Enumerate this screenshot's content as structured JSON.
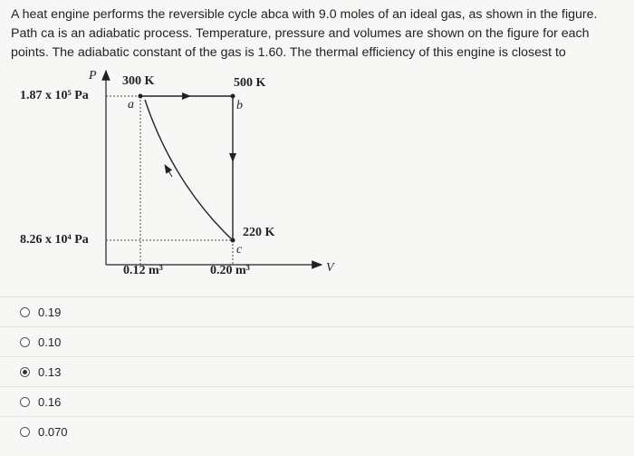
{
  "question": "A heat engine performs the reversible cycle abca with 9.0 moles of an ideal gas, as shown in the figure. Path ca is an adiabatic process. Temperature, pressure and volumes are shown on the figure for each points. The adiabatic constant of the gas is 1.60. The thermal efficiency of this engine is closest to",
  "diagram": {
    "p_axis": "P",
    "v_axis": "V",
    "t_a": "300 K",
    "t_b": "500 K",
    "t_c": "220 K",
    "p_high": "1.87 x 10⁵ Pa",
    "p_low": "8.26 x 10⁴ Pa",
    "v_a": "0.12 m³",
    "v_c": "0.20 m³",
    "a": "a",
    "b": "b",
    "c": "c"
  },
  "options": [
    {
      "label": "0.19",
      "selected": false
    },
    {
      "label": "0.10",
      "selected": false
    },
    {
      "label": "0.13",
      "selected": true
    },
    {
      "label": "0.16",
      "selected": false
    },
    {
      "label": "0.070",
      "selected": false
    }
  ]
}
